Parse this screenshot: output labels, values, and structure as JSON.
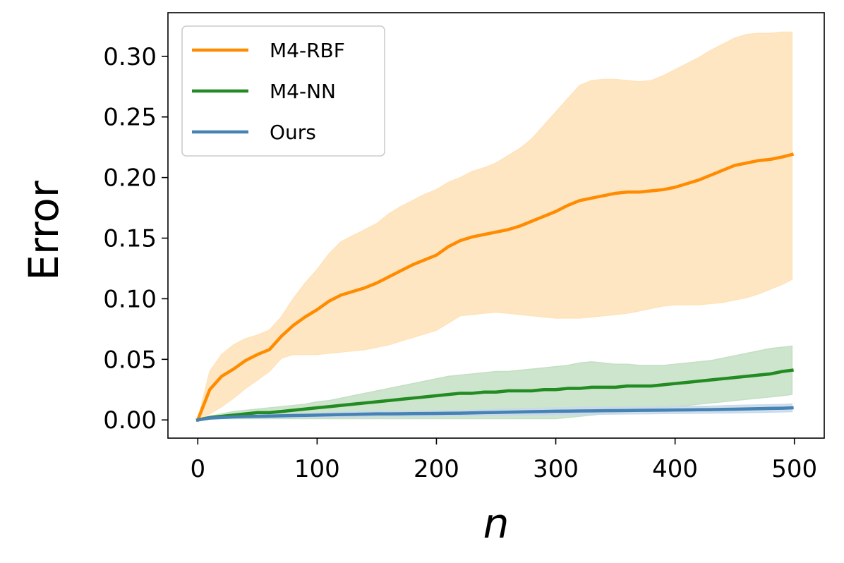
{
  "chart_data": {
    "type": "line",
    "title": "",
    "xlabel": "n",
    "ylabel": "Error",
    "xlim": [
      -25,
      525
    ],
    "ylim": [
      -0.015,
      0.336
    ],
    "xticks": [
      0,
      100,
      200,
      300,
      400,
      500
    ],
    "xtick_labels": [
      "0",
      "100",
      "200",
      "300",
      "400",
      "500"
    ],
    "yticks": [
      0.0,
      0.05,
      0.1,
      0.15,
      0.2,
      0.25,
      0.3
    ],
    "ytick_labels": [
      "0.00",
      "0.05",
      "0.10",
      "0.15",
      "0.20",
      "0.25",
      "0.30"
    ],
    "grid": false,
    "legend_position": "top-left",
    "series": [
      {
        "name": "M4-RBF",
        "color": "#ff8c00",
        "band_color": "#ffe2b8",
        "x": [
          0,
          10,
          20,
          30,
          40,
          50,
          60,
          70,
          80,
          90,
          100,
          110,
          120,
          130,
          140,
          150,
          160,
          170,
          180,
          190,
          200,
          210,
          220,
          230,
          240,
          250,
          260,
          270,
          280,
          290,
          300,
          310,
          320,
          330,
          340,
          350,
          360,
          370,
          380,
          390,
          400,
          410,
          420,
          430,
          440,
          450,
          460,
          470,
          480,
          490,
          498
        ],
        "y": [
          0.0,
          0.025,
          0.036,
          0.042,
          0.049,
          0.054,
          0.058,
          0.069,
          0.078,
          0.085,
          0.091,
          0.098,
          0.103,
          0.106,
          0.109,
          0.113,
          0.118,
          0.123,
          0.128,
          0.132,
          0.136,
          0.143,
          0.148,
          0.151,
          0.153,
          0.155,
          0.157,
          0.16,
          0.164,
          0.168,
          0.172,
          0.177,
          0.181,
          0.183,
          0.185,
          0.187,
          0.188,
          0.188,
          0.189,
          0.19,
          0.192,
          0.195,
          0.198,
          0.202,
          0.206,
          0.21,
          0.212,
          0.214,
          0.215,
          0.217,
          0.219
        ],
        "lower": [
          0.0,
          0.005,
          0.011,
          0.018,
          0.026,
          0.033,
          0.04,
          0.051,
          0.054,
          0.054,
          0.054,
          0.055,
          0.056,
          0.057,
          0.058,
          0.06,
          0.062,
          0.065,
          0.068,
          0.071,
          0.074,
          0.08,
          0.086,
          0.087,
          0.088,
          0.089,
          0.088,
          0.087,
          0.086,
          0.085,
          0.084,
          0.084,
          0.084,
          0.085,
          0.086,
          0.087,
          0.088,
          0.09,
          0.092,
          0.094,
          0.095,
          0.095,
          0.095,
          0.096,
          0.097,
          0.099,
          0.101,
          0.104,
          0.108,
          0.112,
          0.116
        ],
        "upper": [
          0.0,
          0.04,
          0.054,
          0.062,
          0.067,
          0.07,
          0.074,
          0.085,
          0.1,
          0.113,
          0.124,
          0.137,
          0.147,
          0.152,
          0.157,
          0.162,
          0.17,
          0.176,
          0.181,
          0.186,
          0.19,
          0.196,
          0.2,
          0.205,
          0.208,
          0.212,
          0.218,
          0.224,
          0.232,
          0.243,
          0.254,
          0.265,
          0.276,
          0.28,
          0.281,
          0.281,
          0.28,
          0.279,
          0.28,
          0.284,
          0.289,
          0.294,
          0.299,
          0.305,
          0.31,
          0.315,
          0.318,
          0.319,
          0.319,
          0.32,
          0.32
        ]
      },
      {
        "name": "M4-NN",
        "color": "#228b22",
        "band_color": "#c4dfc4",
        "x": [
          0,
          10,
          20,
          30,
          40,
          50,
          60,
          70,
          80,
          90,
          100,
          110,
          120,
          130,
          140,
          150,
          160,
          170,
          180,
          190,
          200,
          210,
          220,
          230,
          240,
          250,
          260,
          270,
          280,
          290,
          300,
          310,
          320,
          330,
          340,
          350,
          360,
          370,
          380,
          390,
          400,
          410,
          420,
          430,
          440,
          450,
          460,
          470,
          480,
          490,
          498
        ],
        "y": [
          0.0,
          0.002,
          0.003,
          0.004,
          0.005,
          0.006,
          0.006,
          0.007,
          0.008,
          0.009,
          0.01,
          0.011,
          0.012,
          0.013,
          0.014,
          0.015,
          0.016,
          0.017,
          0.018,
          0.019,
          0.02,
          0.021,
          0.022,
          0.022,
          0.023,
          0.023,
          0.024,
          0.024,
          0.024,
          0.025,
          0.025,
          0.026,
          0.026,
          0.027,
          0.027,
          0.027,
          0.028,
          0.028,
          0.028,
          0.029,
          0.03,
          0.031,
          0.032,
          0.033,
          0.034,
          0.035,
          0.036,
          0.037,
          0.038,
          0.04,
          0.041
        ],
        "lower": [
          0.0,
          0.001,
          0.001,
          0.001,
          0.001,
          0.001,
          0.001,
          0.001,
          0.001,
          0.001,
          0.001,
          0.001,
          0.001,
          0.001,
          0.001,
          0.001,
          0.001,
          0.001,
          0.001,
          0.001,
          0.001,
          0.001,
          0.001,
          0.001,
          0.001,
          0.001,
          0.001,
          0.001,
          0.001,
          0.001,
          0.001,
          0.002,
          0.003,
          0.004,
          0.005,
          0.006,
          0.007,
          0.008,
          0.009,
          0.01,
          0.011,
          0.012,
          0.013,
          0.014,
          0.015,
          0.016,
          0.017,
          0.018,
          0.019,
          0.02,
          0.021
        ],
        "upper": [
          0.0,
          0.003,
          0.005,
          0.007,
          0.008,
          0.009,
          0.01,
          0.011,
          0.012,
          0.013,
          0.015,
          0.016,
          0.018,
          0.02,
          0.022,
          0.024,
          0.026,
          0.028,
          0.03,
          0.032,
          0.034,
          0.036,
          0.037,
          0.038,
          0.039,
          0.04,
          0.04,
          0.041,
          0.042,
          0.043,
          0.044,
          0.045,
          0.047,
          0.048,
          0.047,
          0.046,
          0.046,
          0.045,
          0.045,
          0.045,
          0.046,
          0.047,
          0.048,
          0.049,
          0.051,
          0.053,
          0.055,
          0.057,
          0.059,
          0.06,
          0.061
        ]
      },
      {
        "name": "Ours",
        "color": "#4682b4",
        "band_color": "#c7d9ea",
        "x": [
          0,
          10,
          20,
          30,
          40,
          50,
          60,
          70,
          80,
          90,
          100,
          110,
          120,
          130,
          140,
          150,
          160,
          170,
          180,
          190,
          200,
          210,
          220,
          230,
          240,
          250,
          260,
          270,
          280,
          290,
          300,
          310,
          320,
          330,
          340,
          350,
          360,
          370,
          380,
          390,
          400,
          410,
          420,
          430,
          440,
          450,
          460,
          470,
          480,
          490,
          498
        ],
        "y": [
          0.0,
          0.0015,
          0.002,
          0.0025,
          0.0028,
          0.003,
          0.0032,
          0.0034,
          0.0036,
          0.0038,
          0.004,
          0.0042,
          0.0044,
          0.0046,
          0.0048,
          0.005,
          0.005,
          0.0051,
          0.0052,
          0.0053,
          0.0054,
          0.0055,
          0.0056,
          0.0058,
          0.006,
          0.0062,
          0.0064,
          0.0066,
          0.0068,
          0.007,
          0.0072,
          0.0073,
          0.0074,
          0.0075,
          0.0076,
          0.0077,
          0.0078,
          0.0079,
          0.008,
          0.0081,
          0.0082,
          0.0083,
          0.0084,
          0.0085,
          0.0087,
          0.0089,
          0.0091,
          0.0093,
          0.0095,
          0.0097,
          0.01
        ],
        "lower": [
          0.0,
          0.0008,
          0.0012,
          0.0015,
          0.0017,
          0.0018,
          0.0019,
          0.002,
          0.0021,
          0.0022,
          0.0023,
          0.0024,
          0.0025,
          0.0026,
          0.0027,
          0.0028,
          0.0029,
          0.003,
          0.0031,
          0.0032,
          0.0033,
          0.0034,
          0.0035,
          0.0036,
          0.0037,
          0.0038,
          0.0039,
          0.004,
          0.0041,
          0.0042,
          0.0043,
          0.0044,
          0.0045,
          0.0046,
          0.0047,
          0.0048,
          0.0049,
          0.005,
          0.0051,
          0.0052,
          0.0053,
          0.0054,
          0.0055,
          0.0056,
          0.0057,
          0.0058,
          0.006,
          0.0062,
          0.0064,
          0.0066,
          0.0068
        ],
        "upper": [
          0.0,
          0.0022,
          0.0028,
          0.0035,
          0.0039,
          0.0042,
          0.0045,
          0.0048,
          0.0051,
          0.0054,
          0.0057,
          0.006,
          0.0063,
          0.0066,
          0.0069,
          0.0072,
          0.0071,
          0.0072,
          0.0073,
          0.0074,
          0.0075,
          0.0076,
          0.0077,
          0.008,
          0.0083,
          0.0086,
          0.0089,
          0.0092,
          0.0095,
          0.0098,
          0.0101,
          0.0102,
          0.0103,
          0.0104,
          0.0105,
          0.0106,
          0.0107,
          0.0108,
          0.0109,
          0.011,
          0.0111,
          0.0112,
          0.0113,
          0.0114,
          0.0117,
          0.012,
          0.0122,
          0.0124,
          0.0126,
          0.0128,
          0.0132
        ]
      }
    ]
  }
}
